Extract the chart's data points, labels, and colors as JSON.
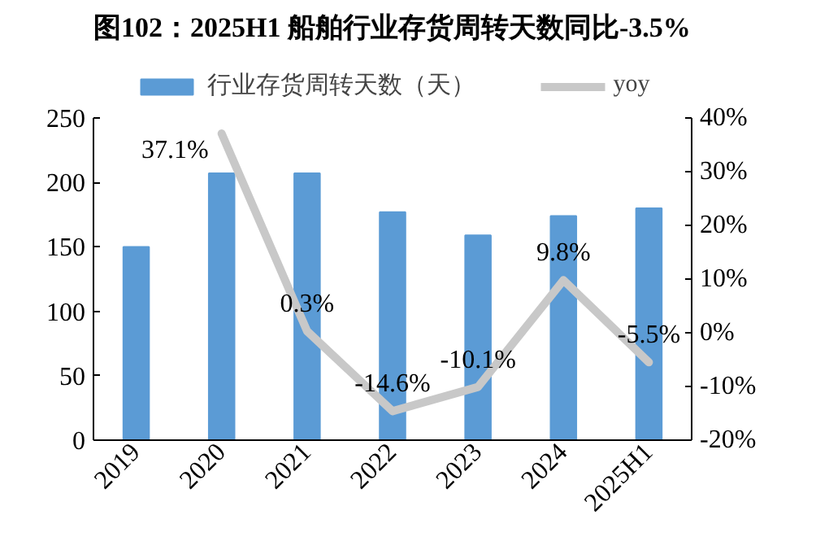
{
  "chart_data": {
    "type": "bar",
    "title": "图102：2025H1 船舶行业存货周转天数同比-3.5%",
    "categories": [
      "2019",
      "2020",
      "2021",
      "2022",
      "2023",
      "2024",
      "2025H1"
    ],
    "series": [
      {
        "name": "行业存货周转天数（天）",
        "color": "#5b9bd5",
        "values": [
          150,
          207,
          207,
          177,
          159,
          174,
          180
        ]
      },
      {
        "name": "yoy",
        "type": "line",
        "axis": "y2",
        "color": "#c8c8c8",
        "values": [
          null,
          37.1,
          0.3,
          -14.6,
          -10.1,
          9.8,
          -5.5
        ],
        "value_labels": [
          null,
          "37.1%",
          "0.3%",
          "-14.6%",
          "-10.1%",
          "9.8%",
          "-5.5%"
        ]
      }
    ],
    "ylim": [
      0,
      250
    ],
    "yticks": [
      0,
      50,
      100,
      150,
      200,
      250
    ],
    "y2lim": [
      -20,
      40
    ],
    "y2ticks": [
      {
        "value": -20,
        "label": "-20%"
      },
      {
        "value": -10,
        "label": "-10%"
      },
      {
        "value": 0,
        "label": "0%"
      },
      {
        "value": 10,
        "label": "10%"
      },
      {
        "value": 20,
        "label": "20%"
      },
      {
        "value": 30,
        "label": "30%"
      },
      {
        "value": 40,
        "label": "40%"
      }
    ],
    "legend": "top",
    "grid": false
  }
}
